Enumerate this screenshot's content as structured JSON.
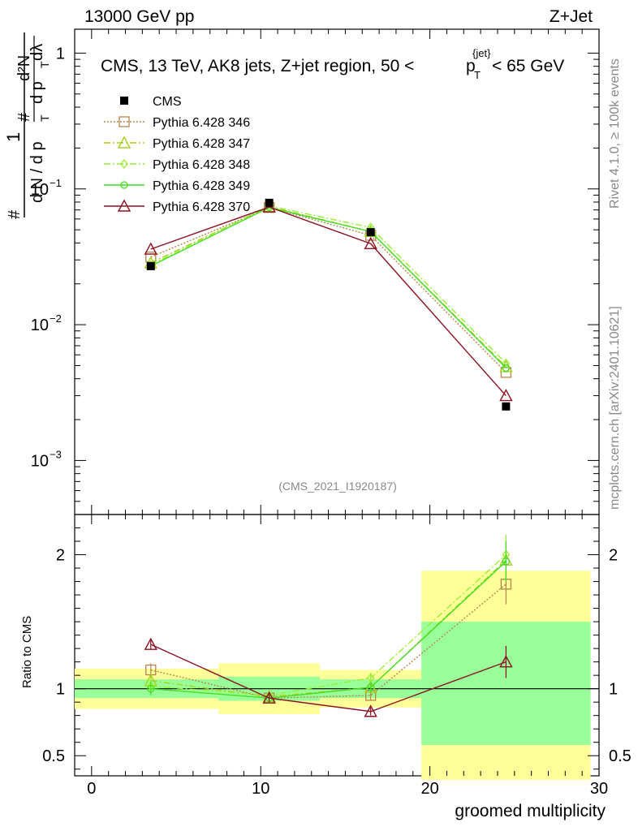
{
  "header": {
    "left": "13000 GeV pp",
    "right": "Z+Jet"
  },
  "side": {
    "rivet": "Rivet 4.1.0, ≥ 100k events",
    "mcplots": "mcplots.cern.ch [arXiv:2401.10621]"
  },
  "chart_data": {
    "type": "line",
    "title": "CMS, 13 TeV, AK8 jets, Z+jet region, 50 <",
    "title_sup": "{jet}",
    "title_p": "p",
    "title_sub": "T",
    "title_end": "< 65 GeV",
    "ylabel_parts": {
      "num1": "1",
      "den1": "#",
      "frac_num": "d²N",
      "hash2": "#",
      "dN": "d N / d p",
      "dp": "d p",
      "dl": "dλ",
      "T": "T"
    },
    "xlabel": "groomed multiplicity",
    "ratio_ylabel": "Ratio to CMS",
    "watermark": "(CMS_2021_I1920187)",
    "xlim": [
      -1,
      30
    ],
    "ylim_main": [
      0.0004,
      1.5
    ],
    "ylim_ratio": [
      0.35,
      2.3
    ],
    "x_ticks": [
      "0",
      "10",
      "20",
      "30"
    ],
    "x_tick_values": [
      0,
      10,
      20,
      30
    ],
    "main_y_ticks": [
      {
        "v": 1,
        "base": "1",
        "exp": ""
      },
      {
        "v": 0.1,
        "base": "10",
        "exp": "−1"
      },
      {
        "v": 0.01,
        "base": "10",
        "exp": "−2"
      },
      {
        "v": 0.001,
        "base": "10",
        "exp": "−3"
      }
    ],
    "ratio_y_ticks": [
      {
        "v": 2,
        "label": "2"
      },
      {
        "v": 1,
        "label": "1"
      },
      {
        "v": 0.5,
        "label": "0.5"
      }
    ],
    "bin_edges": [
      -1,
      7.5,
      13.5,
      19.5,
      29.5
    ],
    "x": [
      3.5,
      10.5,
      16.5,
      24.5
    ],
    "cms": {
      "name": "CMS",
      "values": [
        0.027,
        0.079,
        0.048,
        0.0025
      ]
    },
    "band_inner": [
      [
        0.93,
        1.07
      ],
      [
        0.91,
        1.09
      ],
      [
        0.93,
        1.07
      ],
      [
        0.58,
        1.5
      ]
    ],
    "band_outer": [
      [
        0.85,
        1.15
      ],
      [
        0.81,
        1.19
      ],
      [
        0.86,
        1.14
      ],
      [
        0.32,
        1.88
      ]
    ],
    "series": [
      {
        "name": "Pythia 6.428 346",
        "color": "#b3854d",
        "dash": "2,2",
        "marker": "square",
        "values": [
          0.0315,
          0.073,
          0.0455,
          0.00445
        ],
        "ratio": [
          1.14,
          0.93,
          0.95,
          1.78
        ],
        "rerr": [
          0.05,
          0.03,
          0.04,
          0.15
        ]
      },
      {
        "name": "Pythia 6.428 347",
        "color": "#a6cf1e",
        "dash": "8,3,2,3",
        "marker": "triangle",
        "values": [
          0.0285,
          0.074,
          0.0485,
          0.0049
        ],
        "ratio": [
          1.06,
          0.94,
          1.01,
          1.96
        ],
        "rerr": [
          0.05,
          0.03,
          0.04,
          0.15
        ]
      },
      {
        "name": "Pythia 6.428 348",
        "color": "#99ee33",
        "dash": "8,3,2,3",
        "marker": "diamond",
        "values": [
          0.0275,
          0.075,
          0.052,
          0.0052
        ],
        "ratio": [
          1.02,
          0.95,
          1.08,
          2.0
        ],
        "rerr": [
          0.05,
          0.03,
          0.04,
          0.15
        ]
      },
      {
        "name": "Pythia 6.428 349",
        "color": "#44dd22",
        "dash": "",
        "marker": "circle",
        "values": [
          0.027,
          0.073,
          0.0485,
          0.0048
        ],
        "ratio": [
          1.0,
          0.93,
          1.01,
          1.95
        ],
        "rerr": [
          0.05,
          0.03,
          0.04,
          0.15
        ]
      },
      {
        "name": "Pythia 6.428 370",
        "color": "#8b1020",
        "dash": "",
        "marker": "triangle",
        "values": [
          0.036,
          0.0735,
          0.0395,
          0.003
        ],
        "ratio": [
          1.33,
          0.93,
          0.83,
          1.2
        ],
        "rerr": [
          0.04,
          0.03,
          0.03,
          0.12
        ]
      }
    ]
  }
}
